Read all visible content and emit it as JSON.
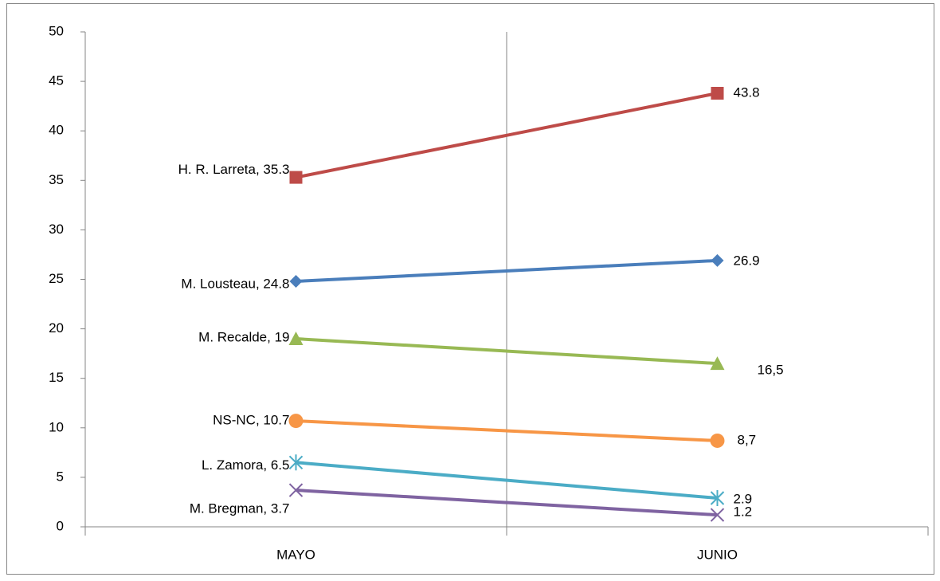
{
  "chart_data": {
    "type": "line",
    "categories": [
      "MAYO",
      "JUNIO"
    ],
    "series": [
      {
        "color": "#be4b48",
        "marker": "square",
        "values": [
          35.3,
          43.8
        ],
        "value_labels": [
          "H. R. Larreta, 35.3",
          "43.8"
        ]
      },
      {
        "color": "#4a7ebb",
        "marker": "diamond",
        "values": [
          24.8,
          26.9
        ],
        "value_labels": [
          "M. Lousteau, 24.8",
          "26.9"
        ]
      },
      {
        "color": "#98b954",
        "marker": "triangle",
        "values": [
          19,
          16.5
        ],
        "value_labels": [
          "M. Recalde, 19",
          "16,5"
        ]
      },
      {
        "color": "#f79646",
        "marker": "circle",
        "values": [
          10.7,
          8.7
        ],
        "value_labels": [
          "NS-NC, 10.7",
          "8,7"
        ]
      },
      {
        "color": "#4bacc6",
        "marker": "star",
        "values": [
          6.5,
          2.9
        ],
        "value_labels": [
          "L. Zamora, 6.5",
          "2.9"
        ]
      },
      {
        "color": "#7f63a1",
        "marker": "x",
        "values": [
          3.7,
          1.2
        ],
        "value_labels": [
          "M. Bregman, 3.7",
          "1.2"
        ]
      }
    ],
    "ylim": [
      0,
      50
    ],
    "yticks": [
      0,
      5,
      10,
      15,
      20,
      25,
      30,
      35,
      40,
      45,
      50
    ],
    "grid": false
  }
}
